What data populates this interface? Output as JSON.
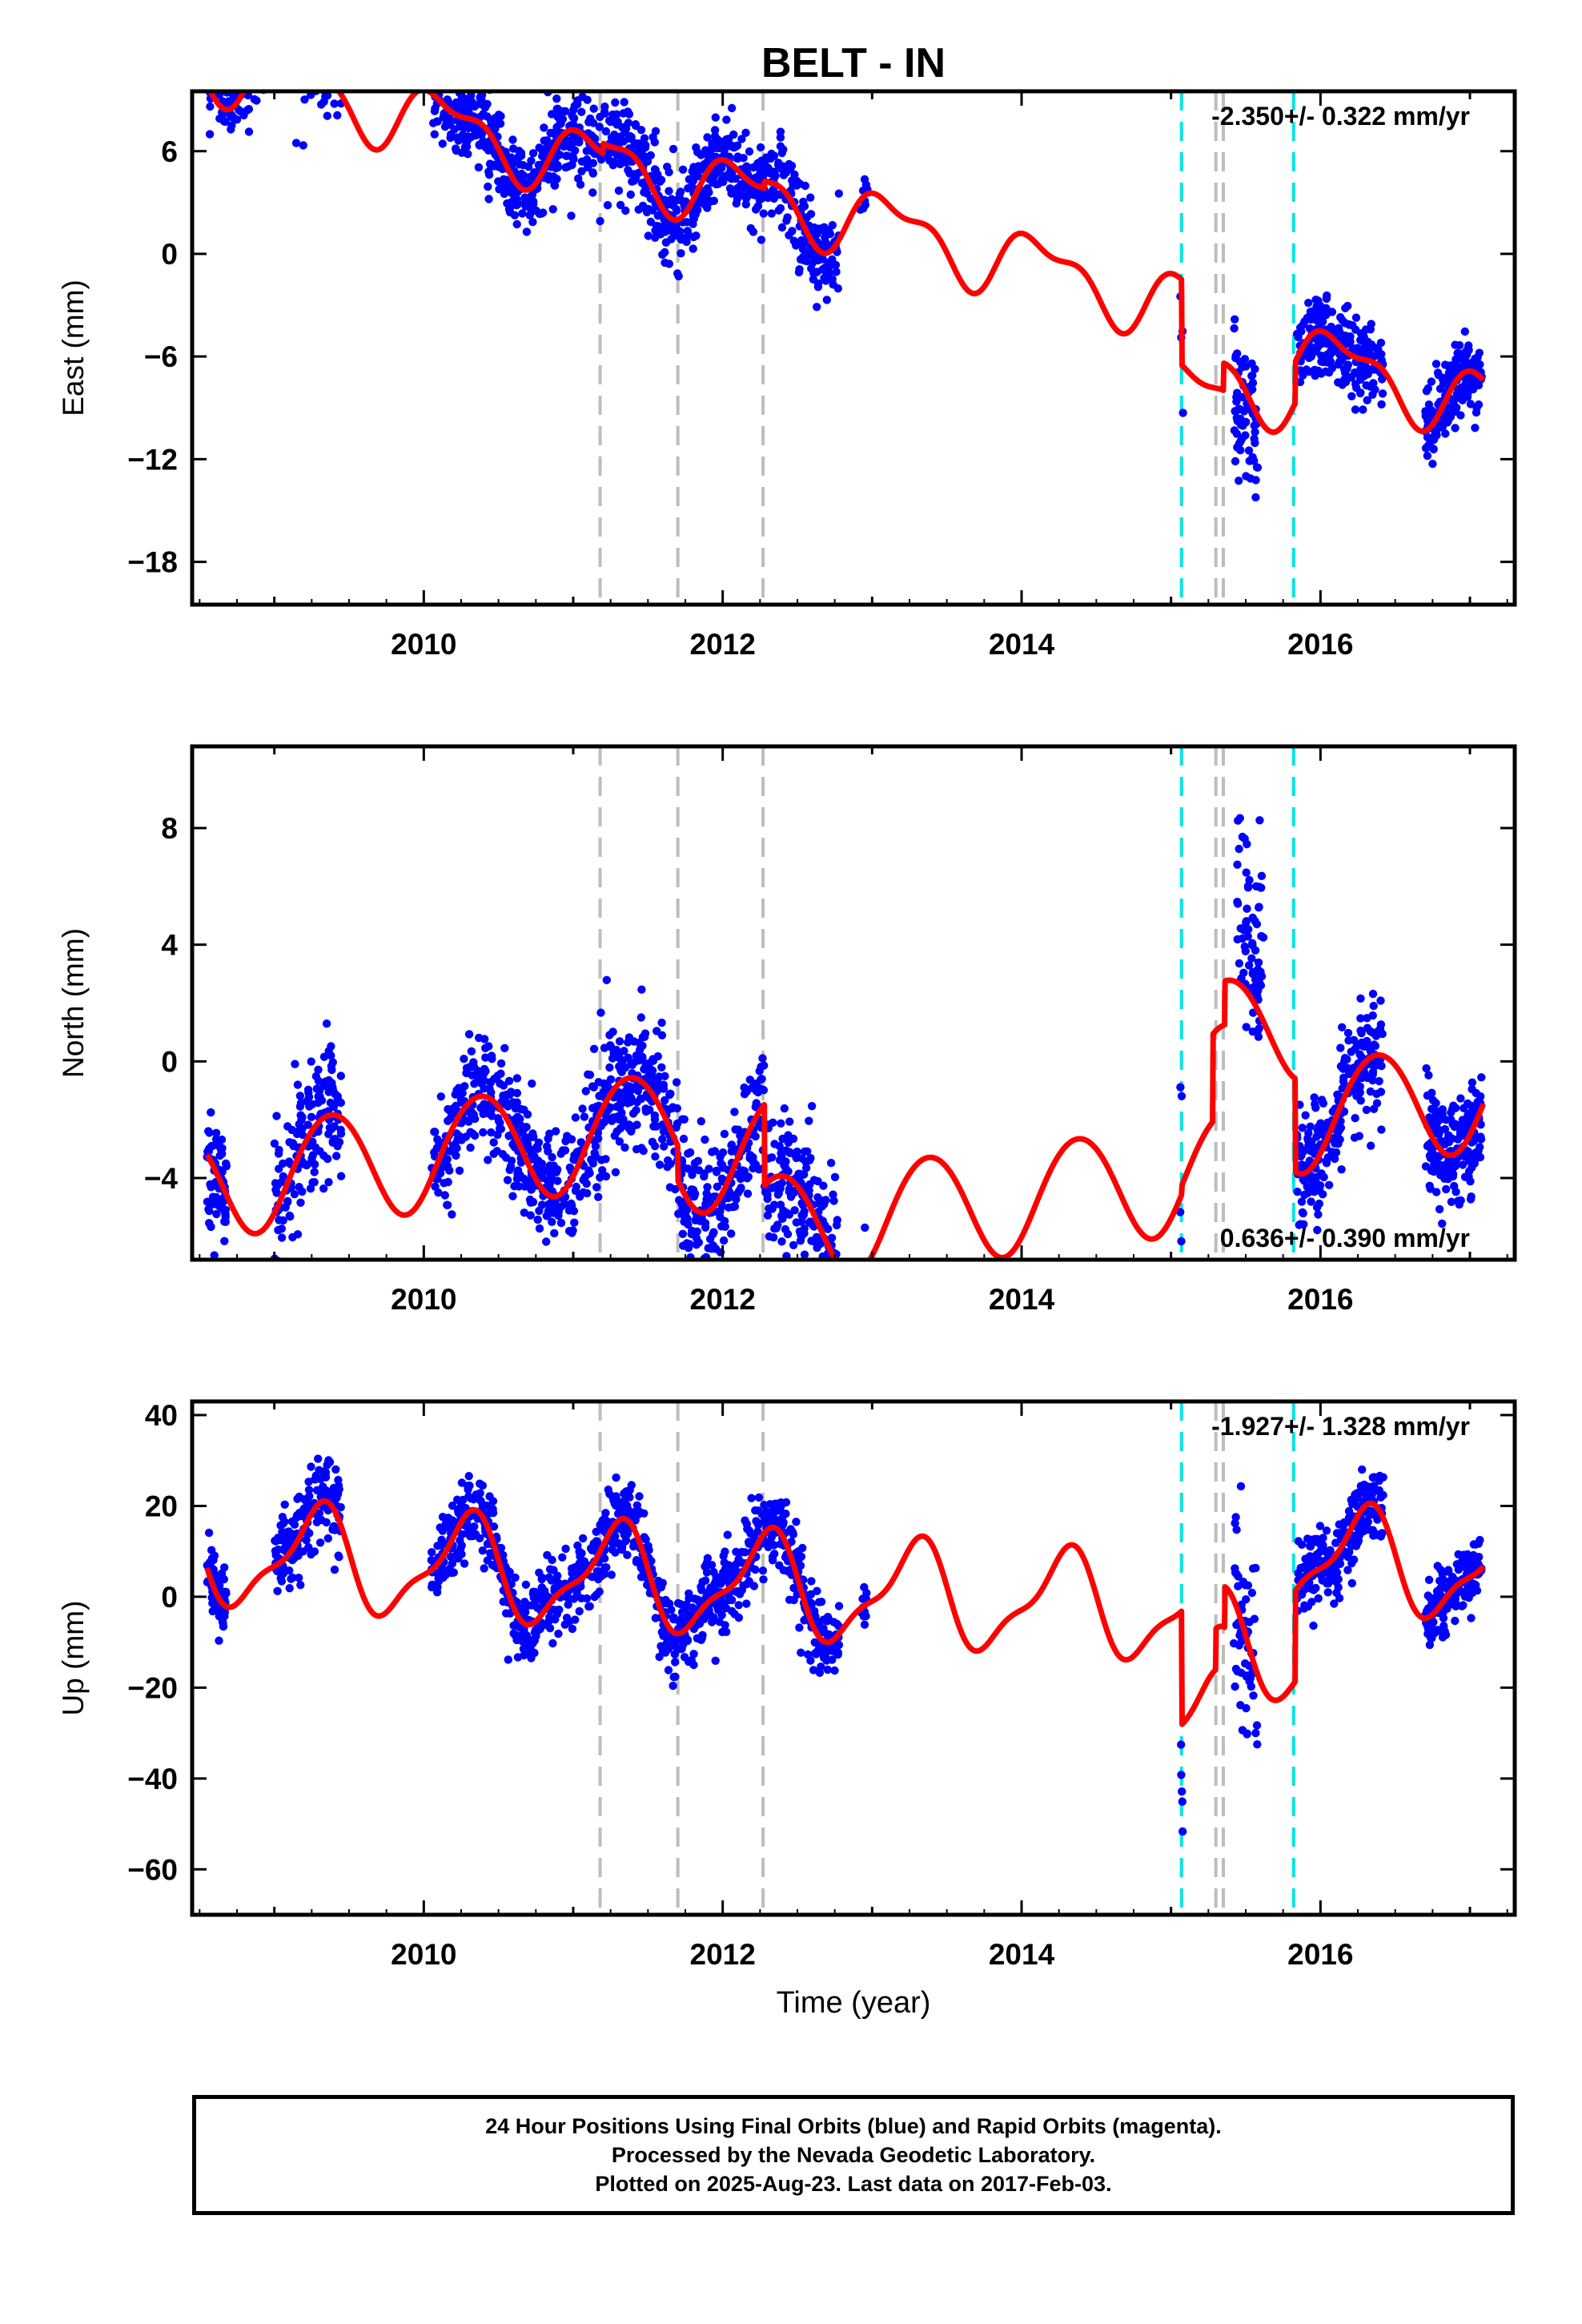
{
  "colors": {
    "data_points": "#0000ff",
    "model_line": "#ff0000",
    "equipment_change_line": "#00e5e5",
    "gray_event_line": "#bdbdbd"
  },
  "chart_data": [
    {
      "id": "east",
      "type": "scatter",
      "title": "BELT - IN",
      "ylabel": "East (mm)",
      "xlabel": "",
      "xlim": [
        2008.45,
        2017.3
      ],
      "ylim": [
        -20.5,
        9.5
      ],
      "xticks": [
        2010,
        2012,
        2014,
        2016
      ],
      "yticks": [
        6,
        0,
        -6,
        -12,
        -18
      ],
      "ytick_labels": [
        "6",
        "0",
        "−6",
        "−12",
        "−18"
      ],
      "rate_label": "-2.350+/- 0.322 mm/yr",
      "rate_position": "top-right",
      "model": {
        "rate": -2.35,
        "intercept": 1.5,
        "ref_year": 2012.7,
        "annual_sin": 1.35,
        "annual_cos": 1.15,
        "semi_sin": -0.55,
        "semi_cos": 0.6,
        "offsets": [
          [
            2011.2,
            0.6
          ],
          [
            2012.28,
            0.4
          ],
          [
            2015.07,
            -5.0
          ],
          [
            2015.35,
            1.6
          ],
          [
            2015.83,
            2.4
          ]
        ]
      },
      "segments": [
        {
          "t0": 2008.55,
          "t1": 2009.45,
          "n": 330,
          "noise": 1.3,
          "bias": 1.0
        },
        {
          "t0": 2010.05,
          "t1": 2012.78,
          "n": 1000,
          "noise": 1.3,
          "bias": 0.0
        },
        {
          "t0": 2012.92,
          "t1": 2012.97,
          "n": 12,
          "noise": 0.7,
          "bias": 0.0
        },
        {
          "t0": 2015.06,
          "t1": 2015.08,
          "n": 4,
          "noise": 1.5,
          "bias": 0.0
        },
        {
          "t0": 2015.42,
          "t1": 2015.58,
          "n": 70,
          "noise": 2.5,
          "bias": -1.0
        },
        {
          "t0": 2015.84,
          "t1": 2016.42,
          "n": 240,
          "noise": 1.1,
          "bias": 0.0
        },
        {
          "t0": 2016.7,
          "t1": 2017.08,
          "n": 190,
          "noise": 1.0,
          "bias": 0.0
        }
      ]
    },
    {
      "id": "north",
      "type": "scatter",
      "title": "",
      "ylabel": "North (mm)",
      "xlabel": "",
      "xlim": [
        2008.45,
        2017.3
      ],
      "ylim": [
        -6.8,
        10.8
      ],
      "xticks": [
        2010,
        2012,
        2014,
        2016
      ],
      "yticks": [
        8,
        4,
        0,
        -4
      ],
      "ytick_labels": [
        "8",
        "4",
        "0",
        "−4"
      ],
      "rate_label": "0.636+/- 0.390 mm/yr",
      "rate_position": "bottom-right",
      "model": {
        "rate": 0.636,
        "intercept": -1.5,
        "ref_year": 2012.7,
        "annual_sin": 1.3,
        "annual_cos": -1.35,
        "semi_sin": 0.1,
        "semi_cos": 0.0,
        "offsets": [
          [
            2011.7,
            -1.2
          ],
          [
            2012.28,
            -2.8
          ],
          [
            2015.07,
            0.3
          ],
          [
            2015.28,
            3.0
          ],
          [
            2015.36,
            1.5
          ],
          [
            2015.83,
            -3.2
          ]
        ]
      },
      "segments": [
        {
          "t0": 2008.55,
          "t1": 2008.68,
          "n": 70,
          "noise": 1.1,
          "bias": -0.4
        },
        {
          "t0": 2009.0,
          "t1": 2009.45,
          "n": 160,
          "noise": 1.2,
          "bias": 0.3
        },
        {
          "t0": 2010.05,
          "t1": 2012.78,
          "n": 1000,
          "noise": 1.1,
          "bias": 0.0
        },
        {
          "t0": 2012.92,
          "t1": 2012.97,
          "n": 10,
          "noise": 0.6,
          "bias": -0.8
        },
        {
          "t0": 2015.06,
          "t1": 2015.08,
          "n": 4,
          "noise": 2.5,
          "bias": 0.0
        },
        {
          "t0": 2015.44,
          "t1": 2015.62,
          "n": 70,
          "noise": 1.8,
          "bias": 1.6
        },
        {
          "t0": 2015.84,
          "t1": 2016.42,
          "n": 240,
          "noise": 1.0,
          "bias": 0.0
        },
        {
          "t0": 2016.7,
          "t1": 2017.08,
          "n": 190,
          "noise": 0.9,
          "bias": 0.0
        }
      ]
    },
    {
      "id": "up",
      "type": "scatter",
      "title": "",
      "ylabel": "Up (mm)",
      "xlabel": "Time (year)",
      "xlim": [
        2008.45,
        2017.3
      ],
      "ylim": [
        -70,
        43
      ],
      "xticks": [
        2010,
        2012,
        2014,
        2016
      ],
      "yticks": [
        40,
        20,
        0,
        -20,
        -40,
        -60
      ],
      "ytick_labels": [
        "40",
        "20",
        "0",
        "−20",
        "−40",
        "−60"
      ],
      "rate_label": "-1.927+/- 1.328 mm/yr",
      "rate_position": "top-right",
      "model": {
        "rate": -1.927,
        "intercept": 1.5,
        "ref_year": 2012.7,
        "annual_sin": 10.4,
        "annual_cos": -2.1,
        "semi_sin": -3.6,
        "semi_cos": 0.2,
        "offsets": [
          [
            2015.07,
            -25.0
          ],
          [
            2015.3,
            9.0
          ],
          [
            2015.36,
            9.0
          ],
          [
            2015.83,
            20.0
          ]
        ]
      },
      "segments": [
        {
          "t0": 2008.55,
          "t1": 2008.68,
          "n": 70,
          "noise": 4.0,
          "bias": 0.0
        },
        {
          "t0": 2009.0,
          "t1": 2009.45,
          "n": 170,
          "noise": 4.5,
          "bias": 1.0
        },
        {
          "t0": 2010.05,
          "t1": 2012.78,
          "n": 1000,
          "noise": 4.3,
          "bias": 0.0
        },
        {
          "t0": 2012.92,
          "t1": 2012.97,
          "n": 10,
          "noise": 2.5,
          "bias": -1.0
        },
        {
          "t0": 2015.06,
          "t1": 2015.08,
          "n": 5,
          "noise": 10.0,
          "bias": -26.0
        },
        {
          "t0": 2015.42,
          "t1": 2015.58,
          "n": 60,
          "noise": 12.0,
          "bias": -3.0
        },
        {
          "t0": 2015.84,
          "t1": 2016.42,
          "n": 240,
          "noise": 4.0,
          "bias": 0.0
        },
        {
          "t0": 2016.7,
          "t1": 2017.08,
          "n": 190,
          "noise": 3.2,
          "bias": 0.0
        }
      ]
    }
  ],
  "event_lines": {
    "gray": [
      2011.18,
      2011.7,
      2012.27,
      2015.3,
      2015.35
    ],
    "cyan": [
      2015.07,
      2015.82
    ]
  },
  "footer": {
    "line1": "24 Hour Positions Using Final Orbits (blue) and Rapid Orbits (magenta).",
    "line2": "Processed by the Nevada Geodetic Laboratory.",
    "line3": "Plotted on 2025-Aug-23. Last data on 2017-Feb-03."
  }
}
